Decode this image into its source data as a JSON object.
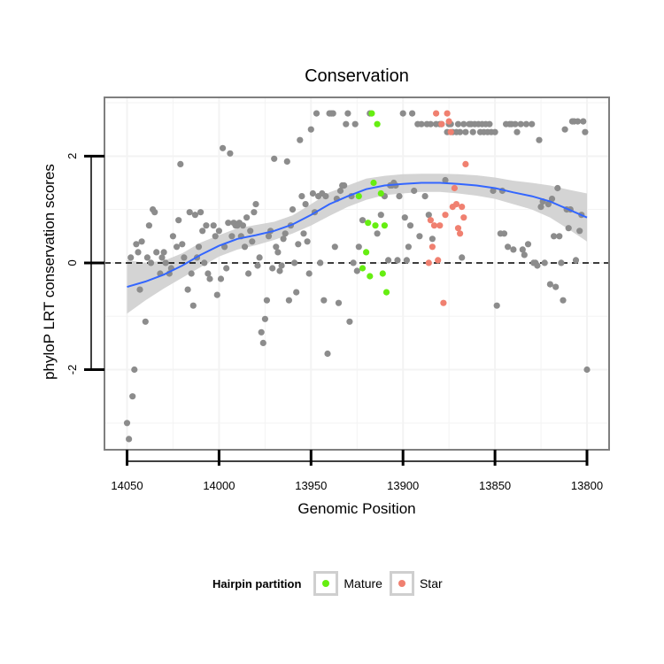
{
  "chart_data": {
    "type": "scatter",
    "title": "Conservation",
    "xlabel": "Genomic Position",
    "ylabel": "phyloP LRT conservation scores",
    "xlim": [
      14050,
      13800
    ],
    "ylim": [
      -3.5,
      3.1
    ],
    "x_reversed": true,
    "x_ticks": [
      14050,
      14000,
      13950,
      13900,
      13850,
      13800
    ],
    "x_tick_labels": [
      "14050",
      "14000",
      "13950",
      "13900",
      "13850",
      "13800"
    ],
    "y_ticks": [
      2,
      0,
      -2
    ],
    "y_tick_labels": [
      "2",
      "0",
      "-2"
    ],
    "reference_line": {
      "y": 0,
      "style": "dashed"
    },
    "legend": {
      "title": "Hairpin partition",
      "entries": [
        {
          "label": "Mature",
          "color": "#66ee11"
        },
        {
          "label": "Star",
          "color": "#f08070"
        }
      ],
      "position": "bottom"
    },
    "colors": {
      "other": "#8c8c8c",
      "mature": "#66ee11",
      "star": "#f08070",
      "smooth": "#3366ff",
      "band": "#cccccc",
      "panel": "#ffffff",
      "grid": "#f3f3f3",
      "border": "#7f7f7f"
    },
    "series": [
      {
        "name": "Other",
        "points": [
          [
            14050,
            -3
          ],
          [
            14049,
            -3.3
          ],
          [
            14047,
            -2.5
          ],
          [
            14046,
            -2
          ],
          [
            14048,
            0.1
          ],
          [
            14045,
            0.35
          ],
          [
            14044,
            0.2
          ],
          [
            14043,
            -0.5
          ],
          [
            14042,
            0.4
          ],
          [
            14040,
            -1.1
          ],
          [
            14039,
            0.1
          ],
          [
            14038,
            0.7
          ],
          [
            14037,
            0
          ],
          [
            14036,
            1
          ],
          [
            14035,
            0.95
          ],
          [
            14034,
            0.2
          ],
          [
            14032,
            -0.2
          ],
          [
            14031,
            0.1
          ],
          [
            14030,
            0.2
          ],
          [
            14029,
            0
          ],
          [
            14027,
            -0.2
          ],
          [
            14026,
            -0.1
          ],
          [
            14025,
            0.5
          ],
          [
            14023,
            0.3
          ],
          [
            14022,
            0.8
          ],
          [
            14021,
            1.85
          ],
          [
            14020,
            0.35
          ],
          [
            14019,
            0.1
          ],
          [
            14017,
            -0.5
          ],
          [
            14016,
            0.95
          ],
          [
            14015,
            -0.2
          ],
          [
            14014,
            -0.8
          ],
          [
            14013,
            0.9
          ],
          [
            14012,
            0.1
          ],
          [
            14011,
            0.3
          ],
          [
            14010,
            0.95
          ],
          [
            14009,
            0.6
          ],
          [
            14008,
            0
          ],
          [
            14007,
            0.7
          ],
          [
            14006,
            -0.2
          ],
          [
            14005,
            -0.3
          ],
          [
            14003,
            0.7
          ],
          [
            14002,
            0.5
          ],
          [
            14001,
            -0.6
          ],
          [
            14000,
            0.6
          ],
          [
            13999,
            -0.3
          ],
          [
            13998,
            2.15
          ],
          [
            13997,
            0.3
          ],
          [
            13996,
            -0.1
          ],
          [
            13995,
            0.75
          ],
          [
            13994,
            2.05
          ],
          [
            13993,
            0.5
          ],
          [
            13992,
            0.75
          ],
          [
            13991,
            0.7
          ],
          [
            13990,
            0.7
          ],
          [
            13989,
            0.75
          ],
          [
            13988,
            0.5
          ],
          [
            13987,
            0.7
          ],
          [
            13986,
            0.3
          ],
          [
            13985,
            0.85
          ],
          [
            13984,
            -0.2
          ],
          [
            13983,
            0.6
          ],
          [
            13982,
            0.4
          ],
          [
            13981,
            0.95
          ],
          [
            13980,
            1.1
          ],
          [
            13979,
            -0.05
          ],
          [
            13978,
            0.1
          ],
          [
            13977,
            -1.3
          ],
          [
            13976,
            -1.5
          ],
          [
            13975,
            -1.05
          ],
          [
            13974,
            -0.7
          ],
          [
            13973,
            0.5
          ],
          [
            13972,
            0.6
          ],
          [
            13971,
            -0.1
          ],
          [
            13970,
            1.95
          ],
          [
            13969,
            0.3
          ],
          [
            13968,
            0.2
          ],
          [
            13967,
            -0.15
          ],
          [
            13966,
            -0.05
          ],
          [
            13965,
            0.45
          ],
          [
            13964,
            0.55
          ],
          [
            13963,
            1.9
          ],
          [
            13962,
            -0.7
          ],
          [
            13961,
            0.7
          ],
          [
            13960,
            1
          ],
          [
            13959,
            0
          ],
          [
            13958,
            -0.55
          ],
          [
            13957,
            0.35
          ],
          [
            13956,
            2.3
          ],
          [
            13955,
            1.25
          ],
          [
            13954,
            0.55
          ],
          [
            13953,
            1.1
          ],
          [
            13952,
            0.4
          ],
          [
            13951,
            -0.2
          ],
          [
            13950,
            2.5
          ],
          [
            13949,
            1.3
          ],
          [
            13948,
            0.95
          ],
          [
            13947,
            2.8
          ],
          [
            13946,
            1.25
          ],
          [
            13945,
            0
          ],
          [
            13944,
            1.3
          ],
          [
            13943,
            -0.7
          ],
          [
            13942,
            1.25
          ],
          [
            13941,
            -1.7
          ],
          [
            13940,
            2.8
          ],
          [
            13939,
            2.8
          ],
          [
            13938,
            2.8
          ],
          [
            13937,
            0.3
          ],
          [
            13936,
            1.2
          ],
          [
            13935,
            -0.75
          ],
          [
            13934,
            1.35
          ],
          [
            13933,
            1.45
          ],
          [
            13932,
            1.45
          ],
          [
            13931,
            2.6
          ],
          [
            13930,
            2.8
          ],
          [
            13929,
            -1.1
          ],
          [
            13928,
            1.25
          ],
          [
            13927,
            0
          ],
          [
            13926,
            2.6
          ],
          [
            13925,
            -0.15
          ],
          [
            13924,
            0.3
          ],
          [
            13922,
            0.8
          ],
          [
            13918,
            2.8
          ],
          [
            13914,
            0.55
          ],
          [
            13912,
            0.9
          ],
          [
            13910,
            1.25
          ],
          [
            13908,
            0.05
          ],
          [
            13907,
            1.45
          ],
          [
            13906,
            1.45
          ],
          [
            13905,
            1.5
          ],
          [
            13904,
            1.45
          ],
          [
            13903,
            0.05
          ],
          [
            13902,
            1.25
          ],
          [
            13900,
            2.8
          ],
          [
            13899,
            0.85
          ],
          [
            13898,
            0.05
          ],
          [
            13897,
            0.3
          ],
          [
            13896,
            0.7
          ],
          [
            13895,
            2.8
          ],
          [
            13894,
            1.35
          ],
          [
            13892,
            2.6
          ],
          [
            13891,
            0.5
          ],
          [
            13890,
            2.6
          ],
          [
            13888,
            1.25
          ],
          [
            13887,
            2.6
          ],
          [
            13886,
            0.9
          ],
          [
            13885,
            2.6
          ],
          [
            13884,
            0.45
          ],
          [
            13882,
            2.6
          ],
          [
            13880,
            2.6
          ],
          [
            13879,
            2.6
          ],
          [
            13877,
            1.55
          ],
          [
            13876,
            2.45
          ],
          [
            13875,
            2.6
          ],
          [
            13874,
            2.6
          ],
          [
            13873,
            2.45
          ],
          [
            13871,
            2.45
          ],
          [
            13870,
            2.6
          ],
          [
            13869,
            2.45
          ],
          [
            13868,
            0.1
          ],
          [
            13867,
            2.6
          ],
          [
            13866,
            2.45
          ],
          [
            13864,
            2.6
          ],
          [
            13863,
            2.6
          ],
          [
            13862,
            2.45
          ],
          [
            13861,
            2.6
          ],
          [
            13859,
            2.6
          ],
          [
            13858,
            2.45
          ],
          [
            13857,
            2.6
          ],
          [
            13856,
            2.45
          ],
          [
            13855,
            2.6
          ],
          [
            13854,
            2.45
          ],
          [
            13853,
            2.6
          ],
          [
            13852,
            2.45
          ],
          [
            13851,
            1.35
          ],
          [
            13850,
            2.45
          ],
          [
            13849,
            -0.8
          ],
          [
            13847,
            0.55
          ],
          [
            13846,
            1.35
          ],
          [
            13845,
            0.55
          ],
          [
            13844,
            2.6
          ],
          [
            13843,
            0.3
          ],
          [
            13842,
            2.6
          ],
          [
            13841,
            2.6
          ],
          [
            13840,
            0.25
          ],
          [
            13839,
            2.6
          ],
          [
            13838,
            2.45
          ],
          [
            13836,
            2.6
          ],
          [
            13835,
            0.25
          ],
          [
            13834,
            0.15
          ],
          [
            13833,
            2.6
          ],
          [
            13832,
            0.35
          ],
          [
            13830,
            2.6
          ],
          [
            13829,
            0
          ],
          [
            13828,
            0
          ],
          [
            13827,
            -0.05
          ],
          [
            13826,
            2.3
          ],
          [
            13825,
            1.05
          ],
          [
            13824,
            1.15
          ],
          [
            13823,
            0
          ],
          [
            13821,
            1.1
          ],
          [
            13820,
            -0.4
          ],
          [
            13819,
            1.2
          ],
          [
            13818,
            0.5
          ],
          [
            13817,
            -0.45
          ],
          [
            13816,
            1.4
          ],
          [
            13815,
            0.5
          ],
          [
            13814,
            0
          ],
          [
            13813,
            -0.7
          ],
          [
            13812,
            2.5
          ],
          [
            13811,
            1
          ],
          [
            13810,
            0.65
          ],
          [
            13809,
            1
          ],
          [
            13808,
            2.65
          ],
          [
            13807,
            2.65
          ],
          [
            13806,
            0.05
          ],
          [
            13805,
            2.65
          ],
          [
            13804,
            0.6
          ],
          [
            13803,
            0.9
          ],
          [
            13802,
            2.65
          ],
          [
            13801,
            2.45
          ],
          [
            13800,
            -2
          ]
        ]
      },
      {
        "name": "Mature",
        "points": [
          [
            13924,
            1.25
          ],
          [
            13922,
            -0.1
          ],
          [
            13920,
            0.2
          ],
          [
            13919,
            0.75
          ],
          [
            13918,
            -0.25
          ],
          [
            13917,
            2.8
          ],
          [
            13916,
            1.5
          ],
          [
            13915,
            0.7
          ],
          [
            13914,
            2.6
          ],
          [
            13912,
            1.3
          ],
          [
            13911,
            -0.2
          ],
          [
            13910,
            0.7
          ],
          [
            13909,
            -0.55
          ]
        ]
      },
      {
        "name": "Star",
        "points": [
          [
            13886,
            0
          ],
          [
            13885,
            0.8
          ],
          [
            13884,
            0.3
          ],
          [
            13883,
            0.7
          ],
          [
            13882,
            2.8
          ],
          [
            13881,
            0.05
          ],
          [
            13880,
            0.7
          ],
          [
            13879,
            2.6
          ],
          [
            13878,
            -0.75
          ],
          [
            13877,
            0.9
          ],
          [
            13876,
            2.8
          ],
          [
            13875,
            2.65
          ],
          [
            13874,
            2.45
          ],
          [
            13873,
            1.05
          ],
          [
            13872,
            1.4
          ],
          [
            13871,
            1.1
          ],
          [
            13870,
            0.65
          ],
          [
            13869,
            0.55
          ],
          [
            13868,
            1.05
          ],
          [
            13867,
            0.85
          ],
          [
            13866,
            1.85
          ]
        ]
      }
    ],
    "smooth_line": {
      "x": [
        14050,
        14040,
        14030,
        14020,
        14010,
        14000,
        13990,
        13980,
        13970,
        13960,
        13950,
        13940,
        13930,
        13920,
        13910,
        13900,
        13890,
        13880,
        13870,
        13860,
        13850,
        13840,
        13830,
        13820,
        13810,
        13800
      ],
      "y": [
        -0.45,
        -0.35,
        -0.22,
        -0.05,
        0.15,
        0.32,
        0.45,
        0.52,
        0.6,
        0.72,
        0.9,
        1.1,
        1.25,
        1.38,
        1.45,
        1.48,
        1.5,
        1.5,
        1.48,
        1.45,
        1.4,
        1.32,
        1.25,
        1.15,
        1.0,
        0.85
      ]
    },
    "confidence_band": {
      "x": [
        14050,
        14040,
        14030,
        14020,
        14010,
        14000,
        13990,
        13980,
        13970,
        13960,
        13950,
        13940,
        13930,
        13920,
        13910,
        13900,
        13890,
        13880,
        13870,
        13860,
        13850,
        13840,
        13830,
        13820,
        13810,
        13800
      ],
      "lower": [
        -0.95,
        -0.7,
        -0.48,
        -0.28,
        -0.08,
        0.12,
        0.25,
        0.33,
        0.43,
        0.55,
        0.7,
        0.88,
        1.05,
        1.18,
        1.27,
        1.3,
        1.33,
        1.33,
        1.3,
        1.26,
        1.2,
        1.1,
        1.0,
        0.85,
        0.63,
        0.4
      ],
      "upper": [
        0.05,
        0.0,
        0.04,
        0.18,
        0.38,
        0.52,
        0.65,
        0.71,
        0.77,
        0.89,
        1.1,
        1.32,
        1.45,
        1.58,
        1.63,
        1.66,
        1.67,
        1.67,
        1.66,
        1.64,
        1.6,
        1.54,
        1.5,
        1.45,
        1.37,
        1.3
      ]
    }
  }
}
